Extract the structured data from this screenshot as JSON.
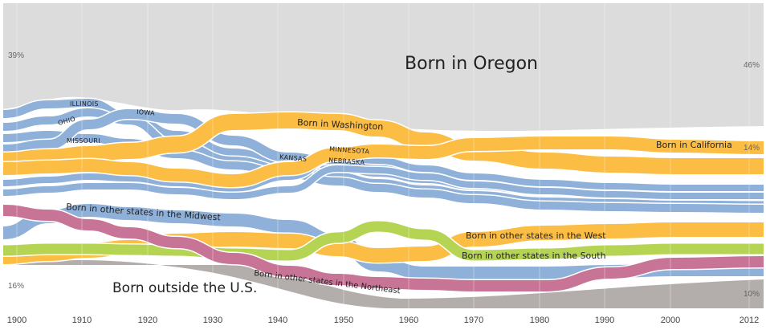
{
  "chart_data": {
    "type": "area",
    "subtype": "streamgraph",
    "x_range": [
      1900,
      2012
    ],
    "x_ticks": [
      "1900",
      "1910",
      "1920",
      "1930",
      "1940",
      "1950",
      "1960",
      "1970",
      "1980",
      "1990",
      "2000",
      "2012"
    ],
    "gridlines": true,
    "colors": {
      "oregon": "#dcdcdc",
      "outside_us": "#b3aeab",
      "midwest": "#8fb0d8",
      "west": "#fcbd44",
      "south": "#b5d454",
      "northeast": "#c87496",
      "background": "#ffffff"
    },
    "series_labels": {
      "oregon": "Born in Oregon",
      "outside_us": "Born outside the U.S.",
      "washington": "Born in Washington",
      "california": "Born in California",
      "midwest": "Born in other states in the Midwest",
      "west": "Born in other states in the West",
      "south": "Born in other states in the South",
      "northeast": "Born in other states in the Northeast"
    },
    "state_labels": [
      "ILLINOIS",
      "OHIO",
      "MISSOURI",
      "IOWA",
      "KANSAS",
      "MINNESOTA",
      "NEBRASKA"
    ],
    "annotations": {
      "oregon_start": "39%",
      "oregon_end": "46%",
      "california_end": "14%",
      "outside_start": "16%",
      "outside_end": "10%"
    },
    "series": [
      {
        "key": "oregon",
        "x": [
          1900,
          1910,
          1920,
          1930,
          1940,
          1950,
          1960,
          1970,
          1980,
          1990,
          2000,
          2012
        ],
        "values": [
          39,
          35,
          36,
          37,
          38,
          40,
          42,
          44,
          45,
          46,
          46,
          46
        ]
      },
      {
        "key": "outside_us",
        "x": [
          1900,
          1910,
          1920,
          1930,
          1940,
          1950,
          1960,
          1970,
          1980,
          1990,
          2000,
          2012
        ],
        "values": [
          16,
          16,
          14,
          11,
          8,
          5,
          4,
          3,
          3,
          4,
          8,
          10
        ]
      }
    ]
  }
}
